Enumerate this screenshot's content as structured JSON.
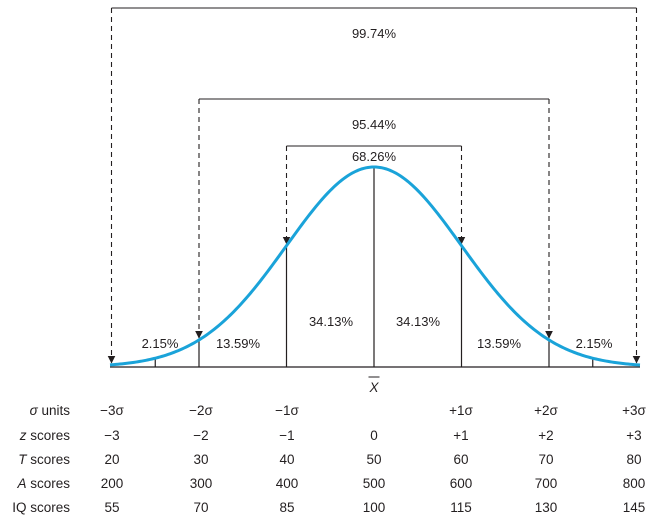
{
  "curve_color": "#1aa3d9",
  "line_color": "#231f20",
  "mean_label": "X",
  "brackets": [
    {
      "label": "99.74%",
      "from_sd": -3,
      "to_sd": 3
    },
    {
      "label": "95.44%",
      "from_sd": -2,
      "to_sd": 2
    },
    {
      "label": "68.26%",
      "from_sd": -1,
      "to_sd": 1
    }
  ],
  "areas": [
    {
      "label": "2.15%",
      "between": [
        -3,
        -2
      ]
    },
    {
      "label": "13.59%",
      "between": [
        -2,
        -1
      ]
    },
    {
      "label": "34.13%",
      "between": [
        -1,
        0
      ]
    },
    {
      "label": "34.13%",
      "between": [
        0,
        1
      ]
    },
    {
      "label": "13.59%",
      "between": [
        1,
        2
      ]
    },
    {
      "label": "2.15%",
      "between": [
        2,
        3
      ]
    }
  ],
  "score_rows": [
    {
      "prefix": "σ",
      "label": " units",
      "values": [
        "−3σ",
        "−2σ",
        "−1σ",
        "",
        "+1σ",
        "+2σ",
        "+3σ"
      ]
    },
    {
      "prefix": "z",
      "label": " scores",
      "values": [
        "−3",
        "−2",
        "−1",
        "0",
        "+1",
        "+2",
        "+3"
      ]
    },
    {
      "prefix": "T",
      "label": " scores",
      "values": [
        "20",
        "30",
        "40",
        "50",
        "60",
        "70",
        "80"
      ]
    },
    {
      "prefix": "A",
      "label": " scores",
      "values": [
        "200",
        "300",
        "400",
        "500",
        "600",
        "700",
        "800"
      ]
    },
    {
      "prefix": "",
      "label": "IQ scores",
      "values": [
        "55",
        "70",
        "85",
        "100",
        "115",
        "130",
        "145"
      ]
    }
  ]
}
